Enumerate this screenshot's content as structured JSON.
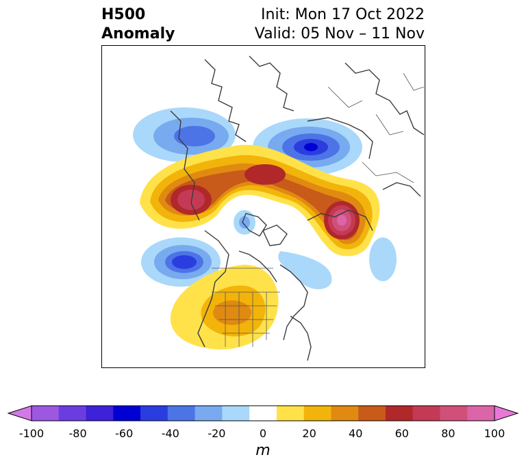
{
  "title": {
    "line1": "H500",
    "line2": "Anomaly",
    "init": "Init: Mon 17 Oct 2022",
    "valid": "Valid: 05 Nov – 11 Nov"
  },
  "colorbar": {
    "units": "m",
    "min": -100,
    "max": 100,
    "step": 10,
    "tick_labels": [
      "-100",
      "-80",
      "-60",
      "-40",
      "-20",
      "0",
      "20",
      "40",
      "60",
      "80",
      "100"
    ],
    "colors": [
      "#d279e8",
      "#9c58e0",
      "#6b3de0",
      "#3d22d9",
      "#0000d4",
      "#2a3ee0",
      "#4d74e6",
      "#78aaf0",
      "#a9d8fa",
      "#ffffff",
      "#ffe24a",
      "#f2b40a",
      "#e08a12",
      "#c85a1a",
      "#b0282a",
      "#c43a55",
      "#d0507a",
      "#dc64a8",
      "#e878d6"
    ]
  }
}
